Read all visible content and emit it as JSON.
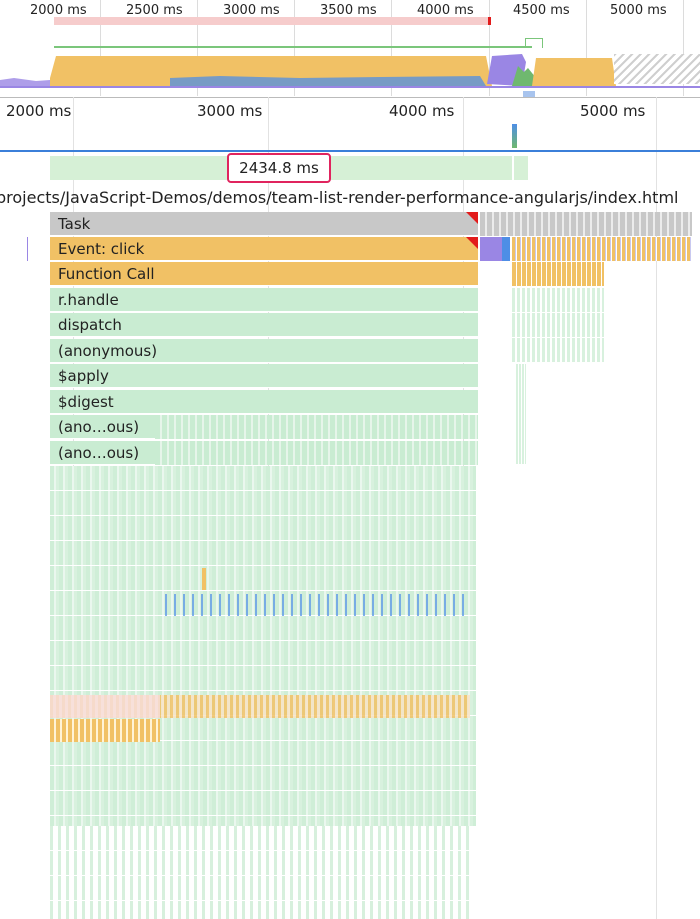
{
  "overview": {
    "ticks": [
      "2000 ms",
      "2500 ms",
      "3000 ms",
      "3500 ms",
      "4000 ms",
      "4500 ms",
      "5000 ms"
    ]
  },
  "main_ruler": {
    "ticks": [
      "2000 ms",
      "3000 ms",
      "4000 ms",
      "5000 ms"
    ]
  },
  "selection": {
    "duration": "2434.8 ms"
  },
  "url_bar": {
    "text": "projects/JavaScript-Demos/demos/team-list-render-performance-angularjs/index.html"
  },
  "flame": {
    "labels": [
      "Task",
      "Event: click",
      "Function Call",
      "r.handle",
      "dispatch",
      "(anonymous)",
      "$apply",
      "$digest",
      "(ano…ous)",
      "(ano…ous)"
    ]
  },
  "colors": {
    "task": "#c8c8c8",
    "event": "#f1c165",
    "script": "#c9ecd2",
    "purple": "#9a86e4",
    "blue": "#4e8ee6",
    "selection_border": "#e0245e",
    "accent_line": "#3b7fd9"
  }
}
